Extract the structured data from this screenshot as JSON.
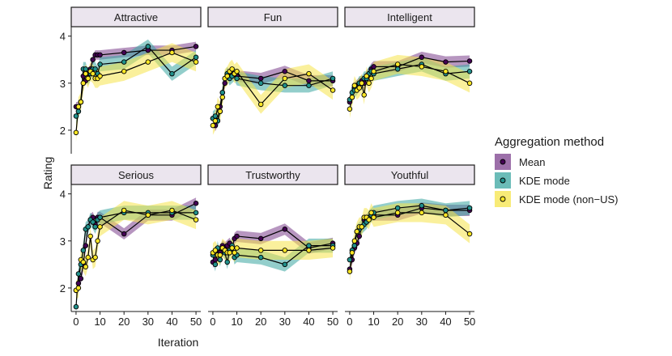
{
  "chart_data": {
    "type": "line",
    "facet_labels": [
      "Attractive",
      "Fun",
      "Intelligent",
      "Serious",
      "Trustworthy",
      "Youthful"
    ],
    "x": [
      0,
      1,
      2,
      3,
      4,
      5,
      6,
      7,
      8,
      9,
      10,
      20,
      30,
      40,
      50
    ],
    "xlim": [
      -2,
      52
    ],
    "ylim": [
      1.5,
      4.2
    ],
    "x_ticks": [
      0,
      10,
      20,
      30,
      40,
      50
    ],
    "y_ticks": [
      2,
      3,
      4
    ],
    "x_tick_labels": [
      "0",
      "10",
      "20",
      "30",
      "40",
      "50"
    ],
    "y_tick_labels": [
      "2",
      "3",
      "4"
    ],
    "xlabel": "Iteration",
    "ylabel": "Rating",
    "legend_title": "Aggregation method",
    "legend_position": "right",
    "series_meta": [
      {
        "name": "Mean",
        "color": "#440154",
        "band_color": "#7b3f8c"
      },
      {
        "name": "KDE mode",
        "color": "#21918c",
        "band_color": "#3aa6a0"
      },
      {
        "name": "KDE mode (non−US)",
        "color": "#fde725",
        "band_color": "#f5e44a"
      }
    ],
    "facets": [
      {
        "label": "Attractive",
        "series": [
          {
            "name": "Mean",
            "values": [
              2.5,
              2.5,
              2.6,
              3.15,
              3.05,
              3.2,
              3.3,
              3.5,
              3.6,
              3.6,
              3.6,
              3.65,
              3.7,
              3.7,
              3.78
            ],
            "band": 0.1
          },
          {
            "name": "KDE mode",
            "values": [
              2.3,
              2.4,
              2.6,
              3.3,
              3.3,
              3.1,
              3.2,
              3.3,
              3.3,
              3.2,
              3.4,
              3.45,
              3.78,
              3.2,
              3.55
            ],
            "band": 0.15
          },
          {
            "name": "KDE mode (non−US)",
            "values": [
              1.95,
              2.5,
              2.6,
              3.0,
              3.2,
              3.1,
              3.25,
              3.2,
              3.1,
              3.1,
              3.15,
              3.25,
              3.45,
              3.65,
              3.45
            ],
            "band": 0.2
          }
        ]
      },
      {
        "label": "Fun",
        "series": [
          {
            "name": "Mean",
            "values": [
              2.25,
              2.1,
              2.2,
              2.5,
              2.8,
              3.0,
              3.2,
              3.15,
              3.2,
              3.2,
              3.15,
              3.1,
              3.25,
              3.05,
              3.05
            ],
            "band": 0.12
          },
          {
            "name": "KDE mode",
            "values": [
              2.25,
              2.3,
              2.2,
              2.4,
              2.8,
              3.1,
              3.2,
              3.1,
              3.15,
              3.2,
              3.1,
              3.0,
              2.95,
              2.95,
              3.1
            ],
            "band": 0.15
          },
          {
            "name": "KDE mode (non−US)",
            "values": [
              2.1,
              2.2,
              2.5,
              2.4,
              2.7,
              3.1,
              3.15,
              3.25,
              3.3,
              3.2,
              3.25,
              2.55,
              3.1,
              3.2,
              2.85
            ],
            "band": 0.2
          }
        ]
      },
      {
        "label": "Intelligent",
        "series": [
          {
            "name": "Mean",
            "values": [
              2.6,
              2.7,
              2.9,
              2.95,
              3.0,
              3.05,
              3.0,
              3.15,
              3.2,
              3.3,
              3.35,
              3.35,
              3.55,
              3.45,
              3.47
            ],
            "band": 0.12
          },
          {
            "name": "KDE mode",
            "values": [
              2.65,
              2.8,
              2.85,
              2.9,
              3.0,
              3.0,
              3.1,
              3.1,
              3.2,
              3.25,
              3.2,
              3.3,
              3.4,
              3.2,
              3.25
            ],
            "band": 0.15
          },
          {
            "name": "KDE mode (non−US)",
            "values": [
              2.45,
              2.7,
              2.95,
              2.85,
              2.9,
              3.0,
              2.75,
              3.15,
              3.0,
              3.1,
              3.25,
              3.4,
              3.35,
              3.25,
              3.0
            ],
            "band": 0.2
          }
        ]
      },
      {
        "label": "Serious",
        "series": [
          {
            "name": "Mean",
            "values": [
              1.95,
              2.1,
              2.2,
              2.5,
              2.9,
              3.3,
              3.45,
              3.5,
              3.35,
              3.5,
              3.5,
              3.15,
              3.55,
              3.55,
              3.8
            ],
            "band": 0.12
          },
          {
            "name": "KDE mode",
            "values": [
              1.6,
              2.3,
              2.5,
              2.8,
              3.25,
              3.3,
              3.45,
              3.4,
              3.3,
              3.45,
              3.5,
              3.6,
              3.6,
              3.6,
              3.6
            ],
            "band": 0.15
          },
          {
            "name": "KDE mode (non−US)",
            "values": [
              1.95,
              2.0,
              2.6,
              2.55,
              2.45,
              2.65,
              3.1,
              2.6,
              2.65,
              3.0,
              3.3,
              3.65,
              3.55,
              3.65,
              3.45
            ],
            "band": 0.2
          }
        ]
      },
      {
        "label": "Trustworthy",
        "series": [
          {
            "name": "Mean",
            "values": [
              2.55,
              2.6,
              2.8,
              2.75,
              2.9,
              2.85,
              2.9,
              2.95,
              2.85,
              3.05,
              3.1,
              3.05,
              3.25,
              2.85,
              2.95
            ],
            "band": 0.12
          },
          {
            "name": "KDE mode",
            "values": [
              2.7,
              2.5,
              2.85,
              2.6,
              2.85,
              2.75,
              2.55,
              2.8,
              2.9,
              2.65,
              2.7,
              2.65,
              2.5,
              2.9,
              2.9
            ],
            "band": 0.15
          },
          {
            "name": "KDE mode (non−US)",
            "values": [
              2.75,
              2.8,
              2.7,
              2.7,
              2.85,
              2.8,
              2.75,
              2.75,
              2.85,
              2.75,
              2.85,
              2.8,
              2.8,
              2.8,
              2.85
            ],
            "band": 0.2
          }
        ]
      },
      {
        "label": "Youthful",
        "series": [
          {
            "name": "Mean",
            "values": [
              2.4,
              2.6,
              2.85,
              2.95,
              3.1,
              3.3,
              3.45,
              3.45,
              3.5,
              3.55,
              3.55,
              3.55,
              3.7,
              3.65,
              3.65
            ],
            "band": 0.12
          },
          {
            "name": "KDE mode",
            "values": [
              2.6,
              2.8,
              2.9,
              3.2,
              3.25,
              3.3,
              3.35,
              3.4,
              3.5,
              3.55,
              3.6,
              3.7,
              3.75,
              3.65,
              3.7
            ],
            "band": 0.15
          },
          {
            "name": "KDE mode (non−US)",
            "values": [
              2.35,
              2.75,
              3.0,
              3.2,
              3.3,
              3.3,
              3.5,
              3.5,
              3.45,
              3.6,
              3.5,
              3.6,
              3.6,
              3.55,
              3.15
            ],
            "band": 0.2
          }
        ]
      }
    ]
  }
}
